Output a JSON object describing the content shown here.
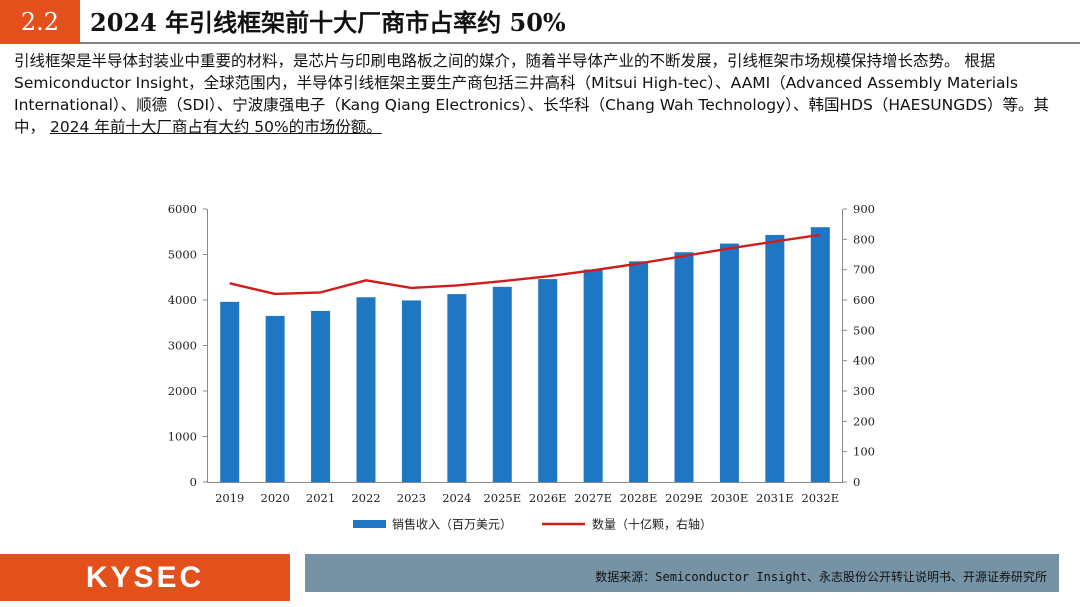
{
  "header": {
    "section_number": "2.2",
    "title": "2024 年引线框架前十大厂商市占率约 50%"
  },
  "intro": {
    "text": "引线框架是半导体封装业中重要的材料，是芯片与印刷电路板之间的媒介，随着半导体产业的不断发展，引线框架市场规模保持增长态势。 根据Semiconductor Insight，全球范围内，半导体引线框架主要生产商包括三井高科（Mitsui High-tec）、AAMI（Advanced Assembly Materials International）、顺德（SDI）、宁波康强电子（Kang Qiang Electronics）、长华科（Chang Wah Technology）、韩国HDS（HAESUNGDS）等。其中，",
    "emphasis": "2024 年前十大厂商占有大约 50%的市场份额。"
  },
  "chart_data": {
    "type": "bar",
    "title": "",
    "categories": [
      "2019",
      "2020",
      "2021",
      "2022",
      "2023",
      "2024",
      "2025E",
      "2026E",
      "2027E",
      "2028E",
      "2029E",
      "2030E",
      "2031E",
      "2032E"
    ],
    "series": [
      {
        "name": "销售收入（百万美元）",
        "type": "bar",
        "axis": "left",
        "color": "#1f77c4",
        "values": [
          3960,
          3650,
          3760,
          4060,
          3990,
          4130,
          4290,
          4460,
          4670,
          4850,
          5050,
          5240,
          5430,
          5600
        ]
      },
      {
        "name": "数量（十亿颗，右轴）",
        "type": "line",
        "axis": "right",
        "color": "#d21c1c",
        "values": [
          655,
          620,
          625,
          665,
          640,
          648,
          662,
          678,
          698,
          720,
          745,
          770,
          793,
          815
        ]
      }
    ],
    "y_left": {
      "min": 0,
      "max": 6000,
      "ticks": [
        "0",
        "1000",
        "2000",
        "3000",
        "4000",
        "5000",
        "6000"
      ]
    },
    "y_right": {
      "min": 0,
      "max": 900,
      "ticks": [
        "0",
        "100",
        "200",
        "300",
        "400",
        "500",
        "600",
        "700",
        "800",
        "900"
      ]
    },
    "legend_position": "bottom",
    "grid": false
  },
  "footer": {
    "logo_text": "KYSEC",
    "source_text": "数据来源：Semiconductor Insight、永志股份公开转让说明书、开源证券研究所"
  },
  "colors": {
    "accent": "#e4501c",
    "footer_bar": "#7693a5",
    "header_rule": "#7f7f7f"
  }
}
